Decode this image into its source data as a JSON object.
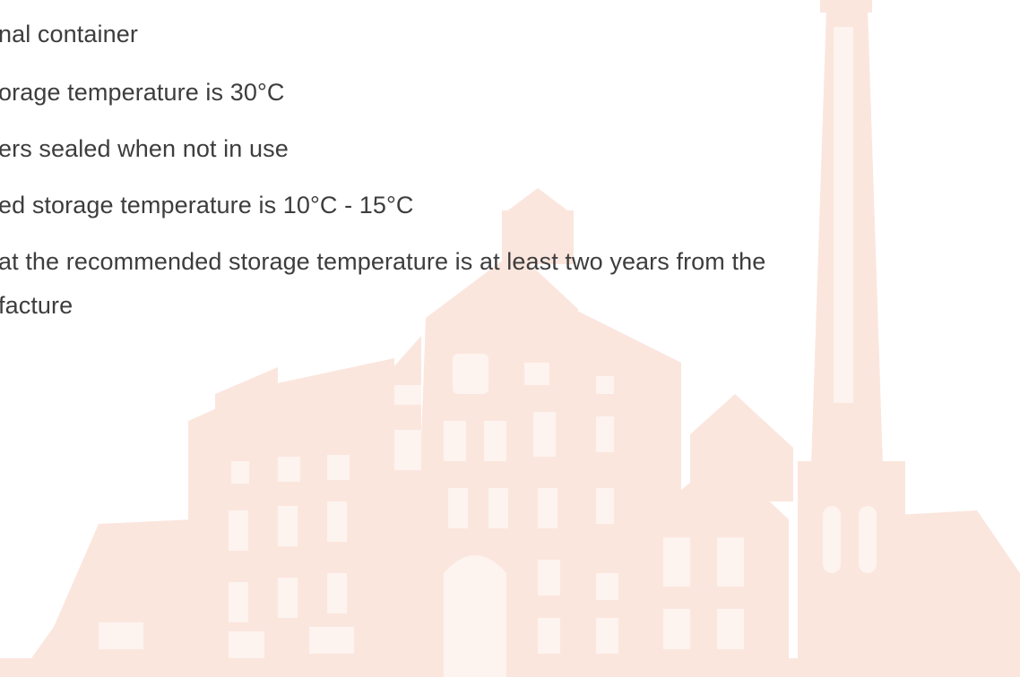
{
  "document": {
    "lines": [
      "nal container",
      "orage temperature is 30°C",
      "ers sealed when not in use",
      "ed storage temperature  is 10°C - 15°C",
      "at the recommended storage temperature is at least two years from the",
      "facture"
    ]
  },
  "colors": {
    "text": "#3d3d3d",
    "illustration": "#fbe7df",
    "background": "#ffffff"
  },
  "icons": {
    "background": "factory-building-watermark"
  }
}
